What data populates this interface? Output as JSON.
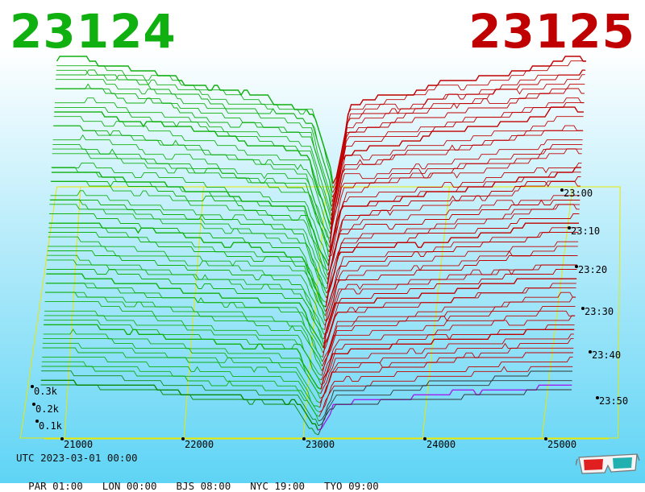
{
  "header": {
    "bid_price": "23124",
    "ask_price": "23125"
  },
  "info": {
    "utc": "UTC 2023-03-01 00:00",
    "zones": [
      "PAR 01:00",
      "LON 00:00",
      "BJS 08:00",
      "NYC 19:00",
      "TYO 09:00"
    ]
  },
  "colors": {
    "bid": "#10b010",
    "ask": "#c00000",
    "grid": "#e8e800",
    "latest": "#a020f0"
  },
  "glasses_icon": "3d-glasses-icon",
  "chart_data": {
    "type": "area",
    "title": "",
    "x_ticks": [
      "21000",
      "22000",
      "23000",
      "24000",
      "25000"
    ],
    "x_range": [
      20800,
      25500
    ],
    "y_ticks": [
      "0.1k",
      "0.2k",
      "0.3k"
    ],
    "time_ticks": [
      "23:00",
      "23:10",
      "23:20",
      "23:30",
      "23:40",
      "23:50"
    ],
    "mid_price": 23124.5,
    "series": [
      {
        "side": "bid",
        "cumulative_depth_at_price": [
          [
            20800,
            0.36
          ],
          [
            21500,
            0.34
          ],
          [
            22500,
            0.3
          ],
          [
            23000,
            0.25
          ],
          [
            23124,
            0.02
          ]
        ]
      },
      {
        "side": "ask",
        "cumulative_depth_at_price": [
          [
            23125,
            0.02
          ],
          [
            23300,
            0.22
          ],
          [
            24000,
            0.27
          ],
          [
            25000,
            0.32
          ],
          [
            25200,
            0.33
          ]
        ]
      }
    ]
  }
}
